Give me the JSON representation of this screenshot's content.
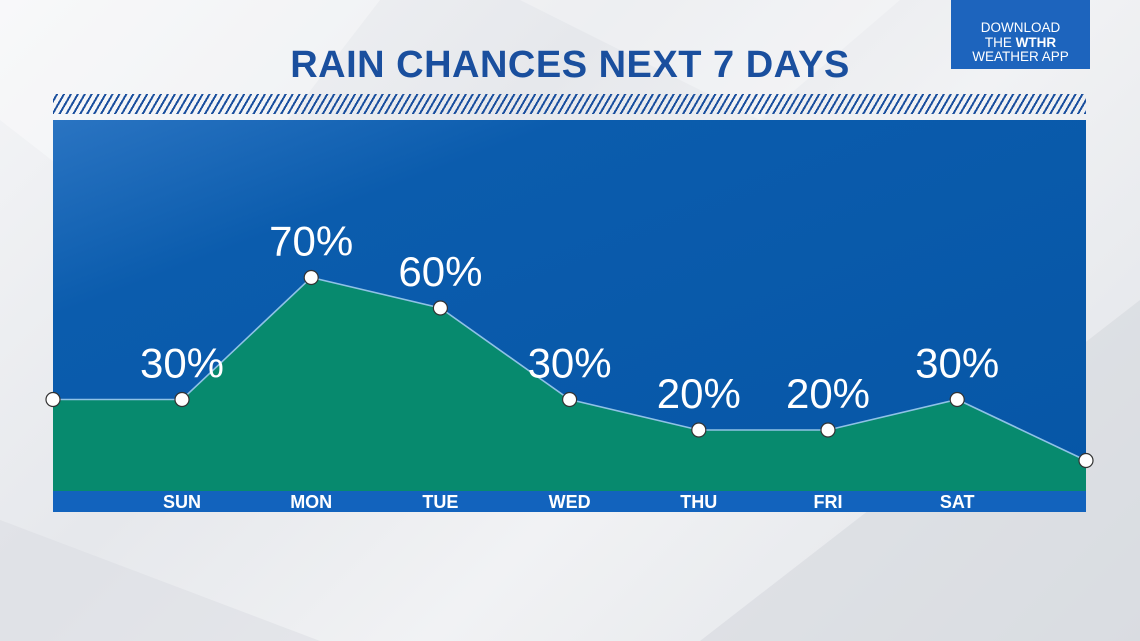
{
  "title": "RAIN CHANCES NEXT 7 DAYS",
  "app_badge": {
    "line1": "DOWNLOAD",
    "line2_prefix": "THE ",
    "line2_brand": "WTHR",
    "line3": "WEATHER APP"
  },
  "colors": {
    "title": "#1a4f9e",
    "panel": "#0a5aaa",
    "area": "#078a6e",
    "line": "#8fc2e6",
    "point_fill": "#ffffff",
    "badge": "#1d64bd"
  },
  "chart_data": {
    "type": "area",
    "title": "RAIN CHANCES NEXT 7 DAYS",
    "categories": [
      "SUN",
      "MON",
      "TUE",
      "WED",
      "THU",
      "FRI",
      "SAT"
    ],
    "values": [
      30,
      70,
      60,
      30,
      20,
      20,
      30
    ],
    "value_labels": [
      "30%",
      "70%",
      "60%",
      "30%",
      "20%",
      "20%",
      "30%"
    ],
    "edge_values": {
      "before": 30,
      "after": 10
    },
    "ylim": [
      0,
      100
    ],
    "grid": false,
    "legend": "none"
  }
}
